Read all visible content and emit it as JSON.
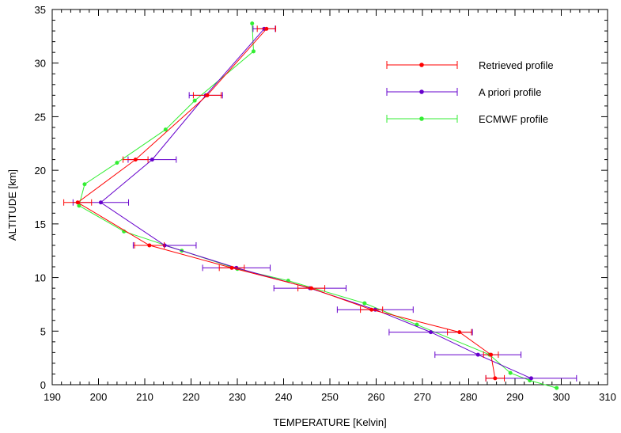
{
  "chart_data": {
    "type": "line",
    "xlabel": "TEMPERATURE [Kelvin]",
    "ylabel": "ALTITUDE [km]",
    "xlim": [
      190,
      310
    ],
    "ylim": [
      0,
      35
    ],
    "xticks": [
      "190",
      "200",
      "210",
      "220",
      "230",
      "240",
      "250",
      "260",
      "270",
      "280",
      "290",
      "300",
      "310"
    ],
    "yticks": [
      "0",
      "5",
      "10",
      "15",
      "20",
      "25",
      "30",
      "35"
    ],
    "grid": false,
    "legend_position": "top-right",
    "series": [
      {
        "name": "Retrieved profile",
        "color": "#ff0000",
        "points": [
          {
            "x": 285.7,
            "y": 0.6,
            "err": 2.0
          },
          {
            "x": 284.8,
            "y": 2.8,
            "err": 1.6
          },
          {
            "x": 278.0,
            "y": 4.9,
            "err": 2.6
          },
          {
            "x": 259.0,
            "y": 7.0,
            "err": 2.4
          },
          {
            "x": 246.0,
            "y": 9.0,
            "err": 2.9
          },
          {
            "x": 228.8,
            "y": 10.9,
            "err": 2.7
          },
          {
            "x": 211.0,
            "y": 13.0,
            "err": 3.2
          },
          {
            "x": 195.5,
            "y": 17.0,
            "err": 3.0
          },
          {
            "x": 208.0,
            "y": 21.0,
            "err": 2.7
          },
          {
            "x": 223.5,
            "y": 27.0,
            "err": 3.0
          },
          {
            "x": 236.3,
            "y": 33.2,
            "err": 2.0
          }
        ]
      },
      {
        "name": "A priori profile",
        "color": "#6600cc",
        "points": [
          {
            "x": 293.5,
            "y": 0.6,
            "err": 9.8
          },
          {
            "x": 282.0,
            "y": 2.8,
            "err": 9.3
          },
          {
            "x": 271.8,
            "y": 4.9,
            "err": 9.0
          },
          {
            "x": 259.8,
            "y": 7.0,
            "err": 8.2
          },
          {
            "x": 245.7,
            "y": 9.0,
            "err": 7.8
          },
          {
            "x": 229.8,
            "y": 10.9,
            "err": 7.3
          },
          {
            "x": 214.3,
            "y": 13.0,
            "err": 6.8
          },
          {
            "x": 200.5,
            "y": 17.0,
            "err": 6.0
          },
          {
            "x": 211.6,
            "y": 21.0,
            "err": 5.2
          },
          {
            "x": 223.2,
            "y": 27.0,
            "err": 3.6
          },
          {
            "x": 235.8,
            "y": 33.2,
            "err": 2.4
          }
        ]
      },
      {
        "name": "ECMWF profile",
        "color": "#33ee33",
        "points": [
          {
            "x": 299.0,
            "y": -0.3
          },
          {
            "x": 293.2,
            "y": 0.4
          },
          {
            "x": 289.0,
            "y": 1.1
          },
          {
            "x": 284.5,
            "y": 2.8
          },
          {
            "x": 268.8,
            "y": 5.6
          },
          {
            "x": 257.5,
            "y": 7.6
          },
          {
            "x": 241.0,
            "y": 9.7
          },
          {
            "x": 230.0,
            "y": 10.8
          },
          {
            "x": 218.0,
            "y": 12.5
          },
          {
            "x": 205.5,
            "y": 14.3
          },
          {
            "x": 195.8,
            "y": 16.7
          },
          {
            "x": 197.0,
            "y": 18.7
          },
          {
            "x": 204.0,
            "y": 20.7
          },
          {
            "x": 214.5,
            "y": 23.8
          },
          {
            "x": 220.8,
            "y": 26.5
          },
          {
            "x": 233.5,
            "y": 31.1
          },
          {
            "x": 233.2,
            "y": 33.7
          }
        ]
      }
    ]
  }
}
